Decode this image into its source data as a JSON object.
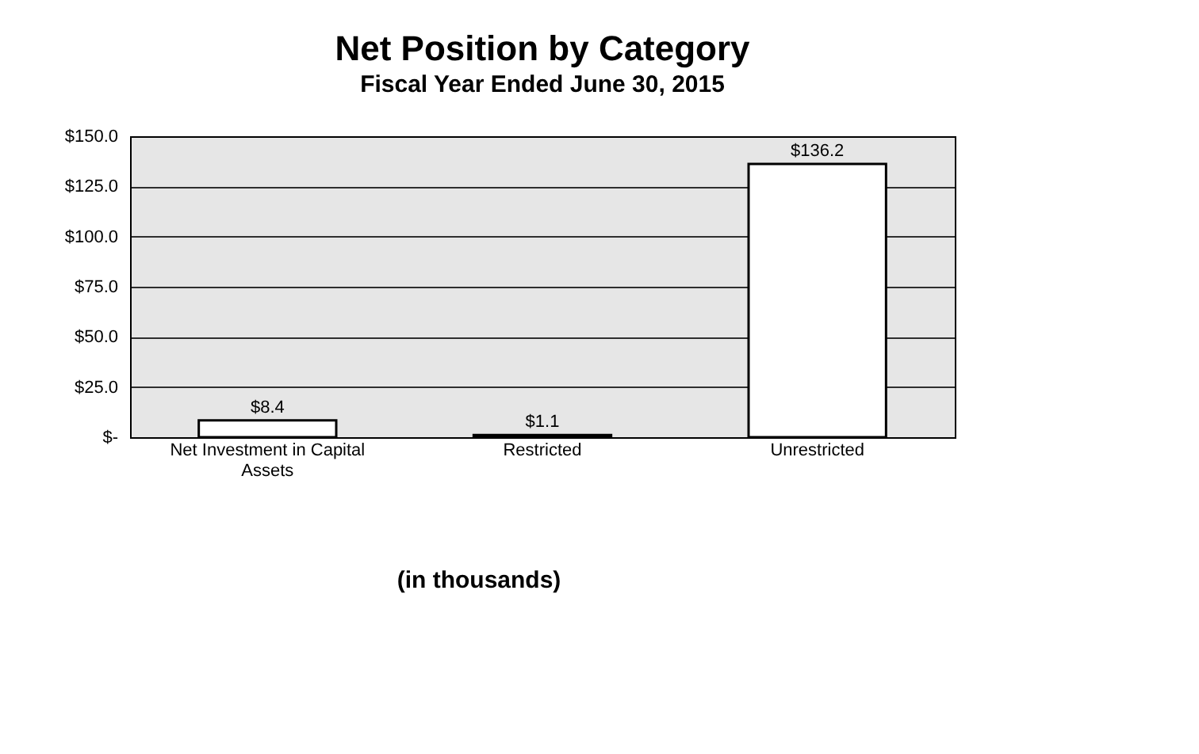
{
  "chart_data": {
    "type": "bar",
    "title": "Net Position by Category",
    "subtitle": "Fiscal Year Ended June 30, 2015",
    "categories": [
      "Net Investment in Capital Assets",
      "Restricted",
      "Unrestricted"
    ],
    "values": [
      8.4,
      1.1,
      136.2
    ],
    "color": "#ffffff",
    "value_labels": [
      "$8.4",
      "$1.1",
      "$136.2"
    ],
    "ylim": [
      0,
      150
    ],
    "yticks": [
      {
        "value": 0,
        "label": "$-"
      },
      {
        "value": 25,
        "label": "$25.0"
      },
      {
        "value": 50,
        "label": "$50.0"
      },
      {
        "value": 75,
        "label": "$75.0"
      },
      {
        "value": 100,
        "label": "$100.0"
      },
      {
        "value": 125,
        "label": "$125.0"
      },
      {
        "value": 150,
        "label": "$150.0"
      }
    ],
    "grid": "y",
    "annotations": [
      "(in thousands)"
    ]
  }
}
